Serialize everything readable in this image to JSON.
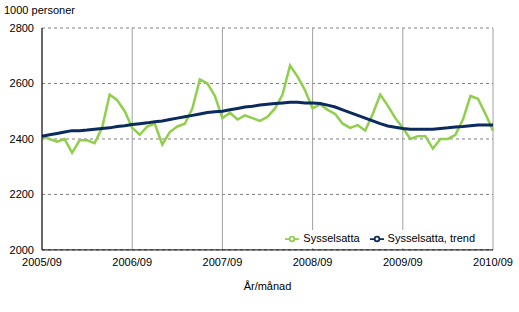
{
  "chart_data": {
    "type": "line",
    "y_label": "1000 personer",
    "x_label": "År/månad",
    "categories": [
      "2005/09",
      null,
      null,
      null,
      null,
      null,
      null,
      null,
      null,
      null,
      null,
      null,
      "2006/09",
      null,
      null,
      null,
      null,
      null,
      null,
      null,
      null,
      null,
      null,
      null,
      "2007/09",
      null,
      null,
      null,
      null,
      null,
      null,
      null,
      null,
      null,
      null,
      null,
      "2008/09",
      null,
      null,
      null,
      null,
      null,
      null,
      null,
      null,
      null,
      null,
      null,
      "2009/09",
      null,
      null,
      null,
      null,
      null,
      null,
      null,
      null,
      null,
      null,
      null,
      "2010/09"
    ],
    "series": [
      {
        "name": "Sysselsatta",
        "color": "#8fcf4c",
        "values": [
          2410,
          2400,
          2390,
          2400,
          2350,
          2395,
          2395,
          2385,
          2440,
          2560,
          2540,
          2500,
          2440,
          2415,
          2445,
          2455,
          2380,
          2425,
          2445,
          2455,
          2510,
          2615,
          2600,
          2555,
          2475,
          2495,
          2470,
          2485,
          2475,
          2465,
          2480,
          2510,
          2560,
          2665,
          2625,
          2575,
          2510,
          2525,
          2505,
          2490,
          2455,
          2440,
          2450,
          2430,
          2490,
          2560,
          2520,
          2475,
          2440,
          2400,
          2410,
          2410,
          2365,
          2400,
          2400,
          2415,
          2470,
          2555,
          2545,
          2490,
          2430
        ]
      },
      {
        "name": "Sysselsatta, trend",
        "color": "#0b2a5e",
        "values": [
          2410,
          2415,
          2420,
          2425,
          2430,
          2430,
          2432,
          2435,
          2438,
          2440,
          2445,
          2448,
          2452,
          2455,
          2458,
          2462,
          2465,
          2470,
          2475,
          2480,
          2485,
          2490,
          2495,
          2498,
          2500,
          2505,
          2510,
          2515,
          2518,
          2522,
          2525,
          2528,
          2530,
          2532,
          2532,
          2530,
          2530,
          2528,
          2522,
          2515,
          2505,
          2495,
          2485,
          2475,
          2465,
          2455,
          2447,
          2442,
          2438,
          2435,
          2435,
          2435,
          2435,
          2438,
          2440,
          2443,
          2445,
          2448,
          2450,
          2450,
          2450
        ]
      }
    ],
    "ylim": [
      2000,
      2800
    ],
    "yticks": [
      2000,
      2200,
      2400,
      2600,
      2800
    ],
    "grid": true,
    "legend": "lower right"
  }
}
